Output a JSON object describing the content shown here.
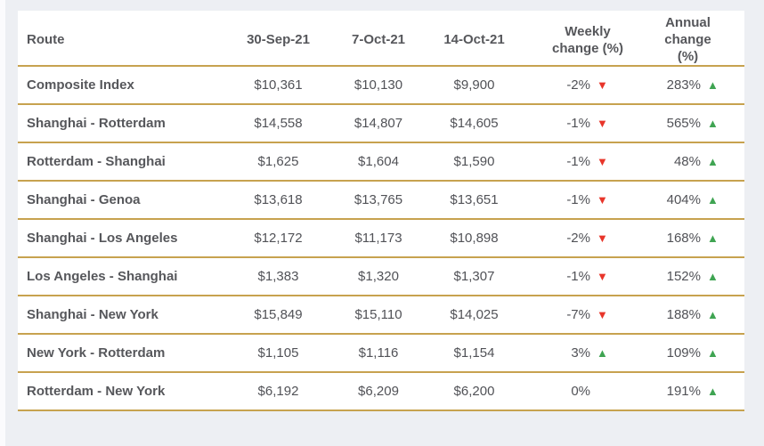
{
  "table": {
    "header": {
      "route": "Route",
      "sep30": "30-Sep-21",
      "oct7": "7-Oct-21",
      "oct14": "14-Oct-21",
      "weekly_line1": "Weekly",
      "weekly_line2": "change (%)",
      "annual_line1": "Annual",
      "annual_line2": "change (%)"
    },
    "rows": [
      {
        "route": "Composite Index",
        "sep30": "$10,361",
        "oct7": "$10,130",
        "oct14": "$9,900",
        "weekly": "-2%",
        "weekly_dir": "down",
        "annual": "283%",
        "annual_dir": "up"
      },
      {
        "route": "Shanghai - Rotterdam",
        "sep30": "$14,558",
        "oct7": "$14,807",
        "oct14": "$14,605",
        "weekly": "-1%",
        "weekly_dir": "down",
        "annual": "565%",
        "annual_dir": "up"
      },
      {
        "route": "Rotterdam - Shanghai",
        "sep30": "$1,625",
        "oct7": "$1,604",
        "oct14": "$1,590",
        "weekly": "-1%",
        "weekly_dir": "down",
        "annual": "48%",
        "annual_dir": "up"
      },
      {
        "route": "Shanghai - Genoa",
        "sep30": "$13,618",
        "oct7": "$13,765",
        "oct14": "$13,651",
        "weekly": "-1%",
        "weekly_dir": "down",
        "annual": "404%",
        "annual_dir": "up"
      },
      {
        "route": "Shanghai - Los Angeles",
        "sep30": "$12,172",
        "oct7": "$11,173",
        "oct14": "$10,898",
        "weekly": "-2%",
        "weekly_dir": "down",
        "annual": "168%",
        "annual_dir": "up"
      },
      {
        "route": "Los Angeles - Shanghai",
        "sep30": "$1,383",
        "oct7": "$1,320",
        "oct14": "$1,307",
        "weekly": "-1%",
        "weekly_dir": "down",
        "annual": "152%",
        "annual_dir": "up"
      },
      {
        "route": "Shanghai - New York",
        "sep30": "$15,849",
        "oct7": "$15,110",
        "oct14": "$14,025",
        "weekly": "-7%",
        "weekly_dir": "down",
        "annual": "188%",
        "annual_dir": "up"
      },
      {
        "route": "New York - Rotterdam",
        "sep30": "$1,105",
        "oct7": "$1,116",
        "oct14": "$1,154",
        "weekly": "3%",
        "weekly_dir": "up",
        "annual": "109%",
        "annual_dir": "up"
      },
      {
        "route": "Rotterdam - New York",
        "sep30": "$6,192",
        "oct7": "$6,209",
        "oct14": "$6,200",
        "weekly": "0%",
        "weekly_dir": null,
        "annual": "191%",
        "annual_dir": "up"
      }
    ]
  },
  "icons": {
    "up": "▲",
    "down": "▼"
  },
  "colors": {
    "gold_border": "#c7a24f",
    "red_down": "#e8352a",
    "green_up": "#3fa452",
    "page_background": "#edeff3",
    "text": "#56575b"
  },
  "chart_data": {
    "type": "table",
    "title": "",
    "columns": [
      "Route",
      "30-Sep-21",
      "7-Oct-21",
      "14-Oct-21",
      "Weekly change (%)",
      "Annual change (%)"
    ],
    "rows": [
      [
        "Composite Index",
        "$10,361",
        "$10,130",
        "$9,900",
        "-2% ▼",
        "283% ▲"
      ],
      [
        "Shanghai - Rotterdam",
        "$14,558",
        "$14,807",
        "$14,605",
        "-1% ▼",
        "565% ▲"
      ],
      [
        "Rotterdam - Shanghai",
        "$1,625",
        "$1,604",
        "$1,590",
        "-1% ▼",
        "48% ▲"
      ],
      [
        "Shanghai - Genoa",
        "$13,618",
        "$13,765",
        "$13,651",
        "-1% ▼",
        "404% ▲"
      ],
      [
        "Shanghai - Los Angeles",
        "$12,172",
        "$11,173",
        "$10,898",
        "-2% ▼",
        "168% ▲"
      ],
      [
        "Los Angeles - Shanghai",
        "$1,383",
        "$1,320",
        "$1,307",
        "-1% ▼",
        "152% ▲"
      ],
      [
        "Shanghai - New York",
        "$15,849",
        "$15,110",
        "$14,025",
        "-7% ▼",
        "188% ▲"
      ],
      [
        "New York - Rotterdam",
        "$1,105",
        "$1,116",
        "$1,154",
        "3% ▲",
        "109% ▲"
      ],
      [
        "Rotterdam - New York",
        "$6,192",
        "$6,209",
        "$6,200",
        "0%",
        "191% ▲"
      ]
    ]
  }
}
